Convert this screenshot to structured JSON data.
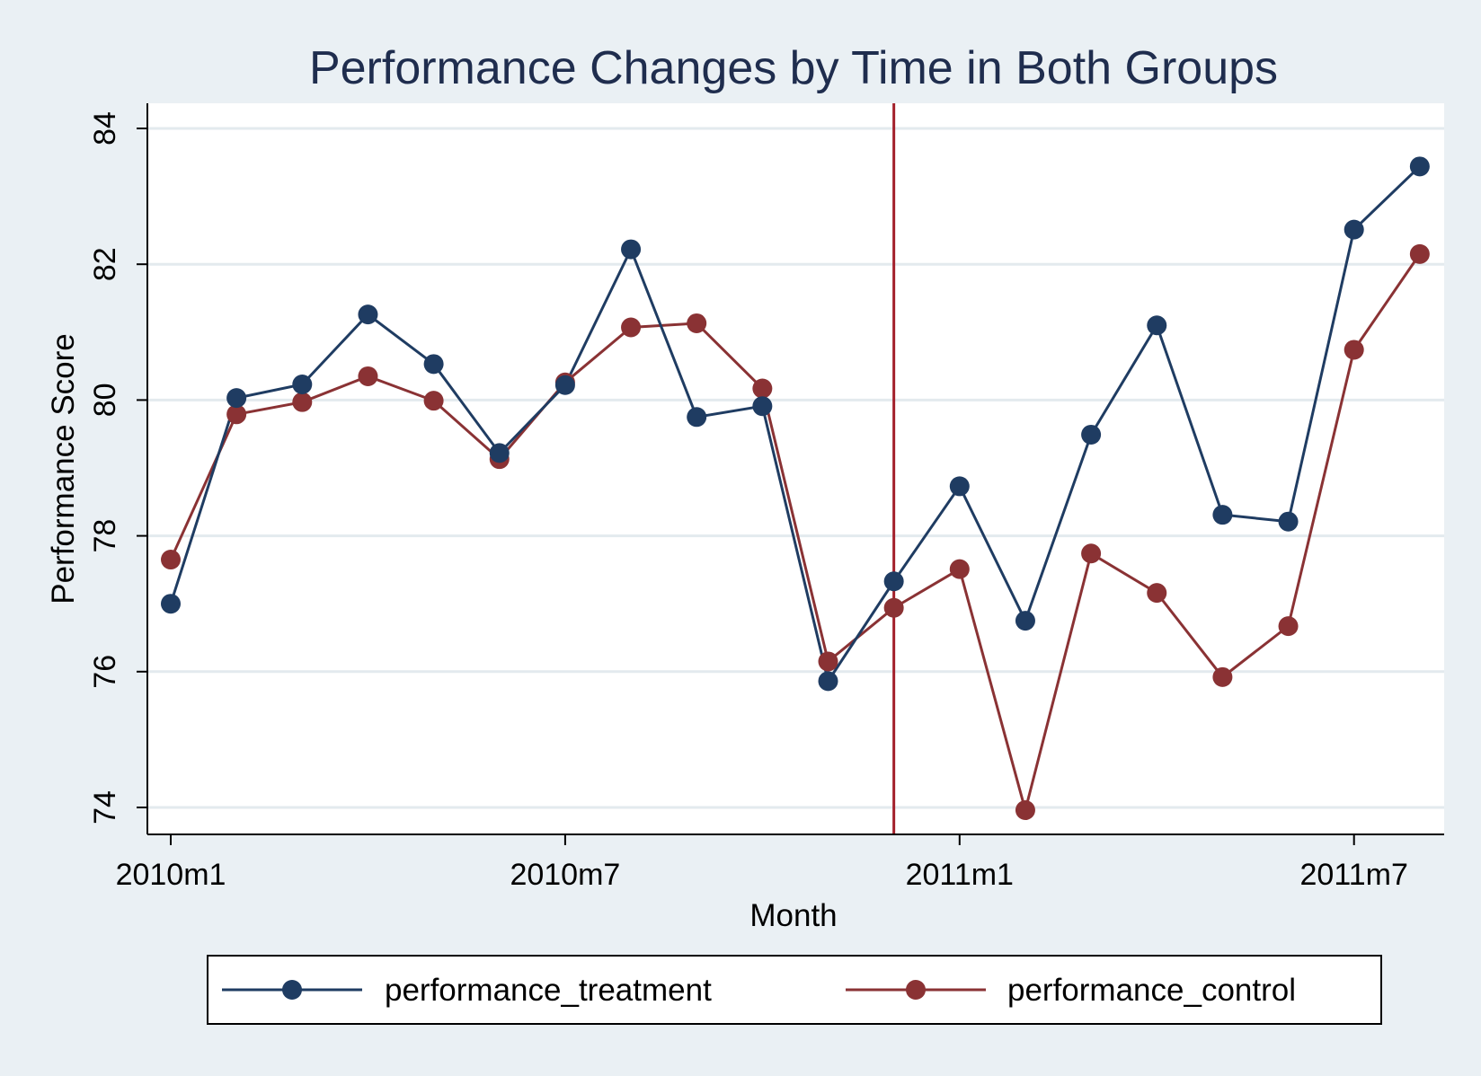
{
  "chart_data": {
    "type": "line",
    "title": "Performance Changes by Time in Both Groups",
    "xlabel": "Month",
    "ylabel": "Performance Score",
    "x": [
      "2010m1",
      "2010m2",
      "2010m3",
      "2010m4",
      "2010m5",
      "2010m6",
      "2010m7",
      "2010m8",
      "2010m9",
      "2010m10",
      "2010m11",
      "2010m12",
      "2011m1",
      "2011m2",
      "2011m3",
      "2011m4",
      "2011m5",
      "2011m6",
      "2011m7",
      "2011m8"
    ],
    "xticks": [
      "2010m1",
      "2010m7",
      "2011m1",
      "2011m7"
    ],
    "yticks": [
      74,
      76,
      78,
      80,
      82,
      84
    ],
    "ylim": [
      73.6,
      84.3
    ],
    "grid": true,
    "legend_position": "bottom",
    "reference_line_x": "2010m12",
    "colors": {
      "background": "#eaf0f4",
      "plot_background": "#ffffff",
      "grid": "#e3eaee",
      "reference_line": "#a3202b"
    },
    "series": [
      {
        "name": "performance_treatment",
        "color": "#1f3c62",
        "values": [
          77.0,
          80.03,
          80.23,
          81.26,
          80.53,
          79.22,
          80.22,
          82.22,
          79.75,
          79.91,
          75.86,
          77.33,
          78.73,
          76.75,
          79.49,
          81.1,
          78.31,
          78.21,
          82.51,
          83.44
        ]
      },
      {
        "name": "performance_control",
        "color": "#8a3234",
        "values": [
          77.65,
          79.79,
          79.97,
          80.35,
          79.99,
          79.13,
          80.26,
          81.07,
          81.13,
          80.17,
          76.15,
          76.94,
          77.51,
          73.96,
          77.74,
          77.16,
          75.92,
          76.67,
          80.74,
          82.15
        ]
      }
    ]
  }
}
